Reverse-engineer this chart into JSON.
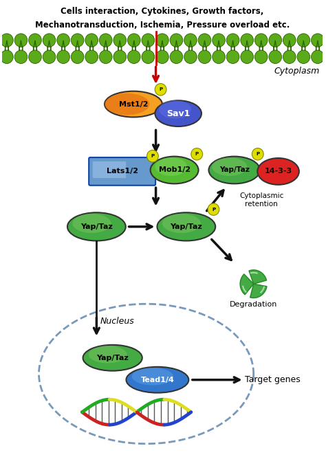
{
  "title_line1": "Cells interaction, Cytokines, Growth factors,",
  "title_line2": "Mechanotransduction, Ischemia, Pressure overload etc.",
  "cytoplasm_label": "Cytoplasm",
  "nucleus_label": "Nucleus",
  "mst_label": "Mst1/2",
  "sav_label": "Sav1",
  "lats_label": "Lats1/2",
  "mob_label": "Mob1/2",
  "yaptaz_label": "Yap/Taz",
  "p_label": "P",
  "label_14_3_3": "14-3-3",
  "cytoplasmic_retention": "Cytoplasmic\nretention",
  "degradation": "Degradation",
  "target_genes": "Target genes",
  "tead_label": "Tead1/4",
  "bg_color": "#ffffff",
  "membrane_color": "#5aaa1a",
  "mst_color": "#f5a020",
  "mst_color2": "#e06010",
  "sav_color": "#4455cc",
  "lats_color": "#6699cc",
  "mob_color": "#55bb33",
  "yaptaz_green": "#44aa44",
  "yaptaz_green2": "#88cc66",
  "p_color": "#dddd00",
  "color_14_3_3": "#dd2222",
  "arrow_color": "#111111",
  "red_arrow_color": "#cc0000",
  "nucleus_color": "#7799bb",
  "dna_colors": [
    "#cc2222",
    "#2244cc",
    "#22aa22",
    "#dddd22"
  ],
  "tead_color": "#3377cc"
}
